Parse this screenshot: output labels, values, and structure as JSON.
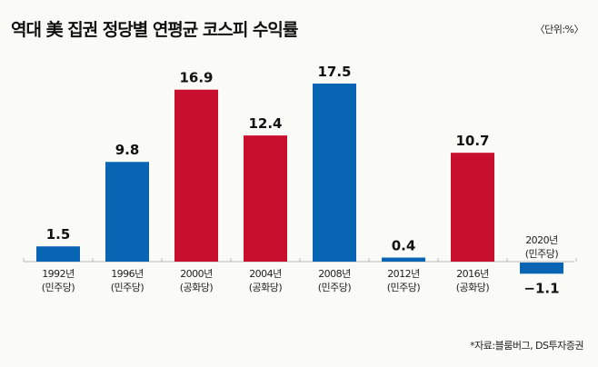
{
  "title": "역대 美 집권 정당별 연평균 코스피 수익률",
  "unit": "〈단위:%〉",
  "source": "*자료:블룸버그, DS투자증권",
  "colors": {
    "민주당": "#0a64b4",
    "공화당": "#c8102e",
    "axis": "#bbbbbb"
  },
  "chart_data": {
    "type": "bar",
    "title": "역대 美 집권 정당별 연평균 코스피 수익률",
    "xlabel": "",
    "ylabel": "%",
    "categories": [
      "1992년",
      "1996년",
      "2000년",
      "2004년",
      "2008년",
      "2012년",
      "2016년",
      "2020년"
    ],
    "parties": [
      "(민주당)",
      "(민주당)",
      "(공화당)",
      "(공화당)",
      "(민주당)",
      "(민주당)",
      "(공화당)",
      "(민주당)"
    ],
    "values": [
      1.5,
      9.8,
      16.9,
      12.4,
      17.5,
      0.4,
      10.7,
      -1.1
    ],
    "labels": [
      "1.5",
      "9.8",
      "16.9",
      "12.4",
      "17.5",
      "0.4",
      "10.7",
      "−1.1"
    ],
    "ylim": [
      -1.5,
      18
    ],
    "grid": false
  }
}
